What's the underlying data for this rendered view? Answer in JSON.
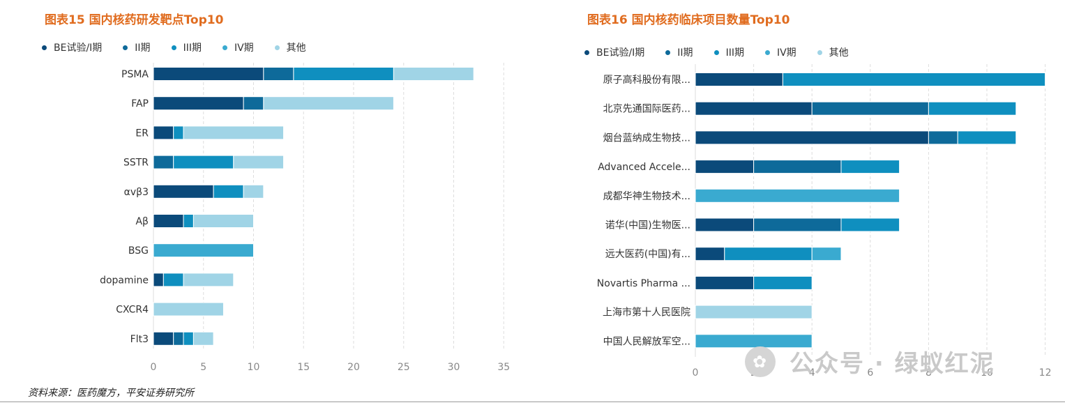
{
  "chart_data": [
    {
      "type": "bar",
      "orientation": "horizontal",
      "stacked": true,
      "title": "图表15 国内核药研发靶点Top10",
      "categories": [
        "PSMA",
        "FAP",
        "ER",
        "SSTR",
        "αvβ3",
        "Aβ",
        "BSG",
        "dopamine",
        "CXCR4",
        "Flt3"
      ],
      "series": [
        {
          "name": "BE试验/I期",
          "values": [
            11,
            9,
            2,
            0,
            6,
            3,
            0,
            1,
            0,
            2
          ]
        },
        {
          "name": "II期",
          "values": [
            3,
            2,
            0,
            2,
            0,
            0,
            0,
            0,
            0,
            1
          ]
        },
        {
          "name": "III期",
          "values": [
            10,
            0,
            1,
            6,
            3,
            1,
            0,
            2,
            0,
            1
          ]
        },
        {
          "name": "IV期",
          "values": [
            0,
            0,
            0,
            0,
            0,
            0,
            10,
            0,
            0,
            0
          ]
        },
        {
          "name": "其他",
          "values": [
            8,
            13,
            10,
            5,
            2,
            6,
            0,
            5,
            7,
            2
          ]
        }
      ],
      "xlim": [
        0,
        35
      ],
      "xticks": [
        "0",
        "5",
        "10",
        "15",
        "20",
        "25",
        "30",
        "35"
      ],
      "grid": true,
      "legend_position": "top"
    },
    {
      "type": "bar",
      "orientation": "horizontal",
      "stacked": true,
      "title": "图表16 国内核药临床项目数量Top10",
      "categories": [
        "原子高科股份有限...",
        "北京先通国际医药...",
        "烟台蓝纳成生物技...",
        "Advanced Accele...",
        "成都华神生物技术...",
        "诺华(中国)生物医...",
        "远大医药(中国)有...",
        "Novartis Pharma ...",
        "上海市第十人民医院",
        "中国人民解放军空..."
      ],
      "series": [
        {
          "name": "BE试验/I期",
          "values": [
            3,
            4,
            8,
            2,
            0,
            2,
            1,
            2,
            0,
            0
          ]
        },
        {
          "name": "II期",
          "values": [
            0,
            4,
            1,
            3,
            0,
            3,
            0,
            0,
            0,
            0
          ]
        },
        {
          "name": "III期",
          "values": [
            9,
            3,
            2,
            2,
            0,
            2,
            3,
            2,
            0,
            0
          ]
        },
        {
          "name": "IV期",
          "values": [
            0,
            0,
            0,
            0,
            7,
            0,
            1,
            0,
            0,
            4
          ]
        },
        {
          "name": "其他",
          "values": [
            0,
            0,
            0,
            0,
            0,
            0,
            0,
            0,
            4,
            0
          ]
        }
      ],
      "xlim": [
        0,
        12
      ],
      "xticks": [
        "0",
        "2",
        "4",
        "6",
        "8",
        "10",
        "12"
      ],
      "grid": true,
      "legend_position": "top"
    }
  ],
  "colors": [
    "#0b4a7a",
    "#0e6a9a",
    "#0f8fbf",
    "#3aaad0",
    "#a0d4e6"
  ],
  "source_text": "资料来源：医药魔方，平安证券研究所",
  "watermark": "公众号 · 绿蚁红泥"
}
